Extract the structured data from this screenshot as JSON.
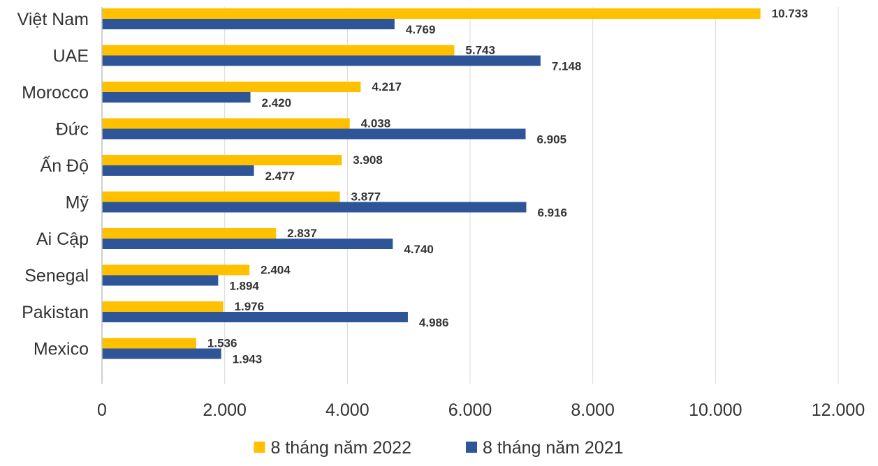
{
  "chart_data": {
    "type": "bar",
    "orientation": "horizontal",
    "categories": [
      "Việt Nam",
      "UAE",
      "Morocco",
      "Đức",
      "Ấn Độ",
      "Mỹ",
      "Ai Cập",
      "Senegal",
      "Pakistan",
      "Mexico"
    ],
    "series": [
      {
        "name": "8 tháng năm 2022",
        "color": "#FFC000",
        "values": [
          10733,
          5743,
          4217,
          4038,
          3908,
          3877,
          2837,
          2404,
          1976,
          1536
        ],
        "labels": [
          "10.733",
          "5.743",
          "4.217",
          "4.038",
          "3.908",
          "3.877",
          "2.837",
          "2.404",
          "1.976",
          "1.536"
        ]
      },
      {
        "name": "8 tháng năm 2021",
        "color": "#2E5597",
        "values": [
          4769,
          7148,
          2420,
          6905,
          2477,
          6916,
          4740,
          1894,
          4986,
          1943
        ],
        "labels": [
          "4.769",
          "7.148",
          "2.420",
          "6.905",
          "2.477",
          "6.916",
          "4.740",
          "1.894",
          "4.986",
          "1.943"
        ]
      }
    ],
    "xlim": [
      0,
      12000
    ],
    "xticks": [
      0,
      2000,
      4000,
      6000,
      8000,
      10000,
      12000
    ],
    "xtick_labels": [
      "0",
      "2.000",
      "4.000",
      "6.000",
      "8.000",
      "10.000",
      "12.000"
    ],
    "grid": true,
    "legend_position": "bottom",
    "title": "",
    "xlabel": "",
    "ylabel": ""
  }
}
